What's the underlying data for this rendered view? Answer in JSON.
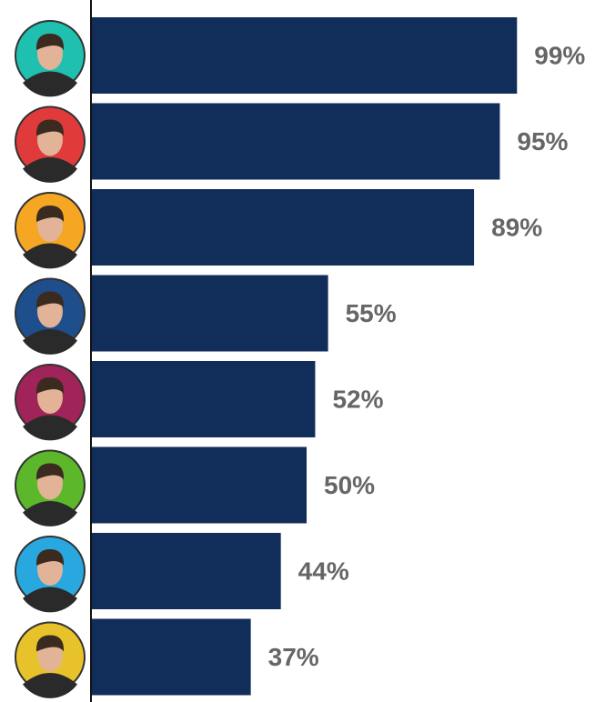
{
  "chart_data": {
    "type": "bar",
    "orientation": "horizontal",
    "categories": [
      null,
      null,
      null,
      null,
      null,
      null,
      null,
      null
    ],
    "values": [
      99,
      95,
      89,
      55,
      52,
      50,
      44,
      37
    ],
    "value_labels": [
      "99%",
      "95%",
      "89%",
      "55%",
      "52%",
      "50%",
      "44%",
      "37%"
    ],
    "color": "#112d59",
    "avatar_colors": [
      "#1fc0b0",
      "#e03a3a",
      "#f5a623",
      "#1e4f8c",
      "#a0235a",
      "#5cb82a",
      "#29a8e0",
      "#e8c22a"
    ],
    "xlim": [
      0,
      100
    ]
  }
}
